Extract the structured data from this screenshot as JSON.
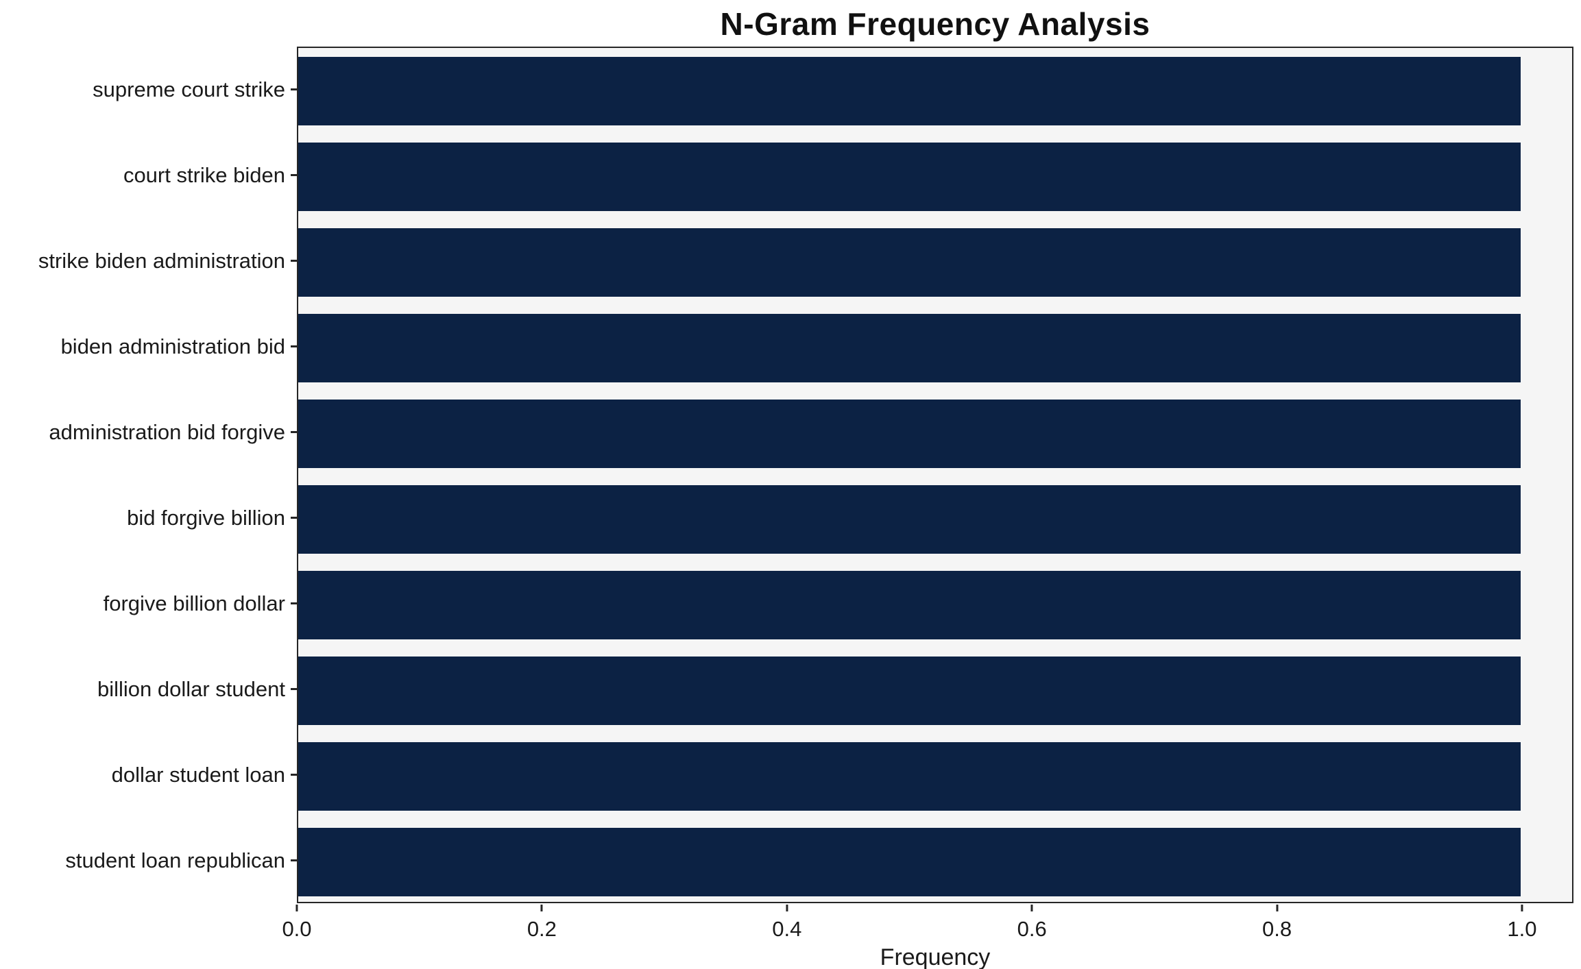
{
  "chart_data": {
    "type": "bar",
    "orientation": "horizontal",
    "title": "N-Gram Frequency Analysis",
    "xlabel": "Frequency",
    "ylabel": "",
    "categories": [
      "supreme court strike",
      "court strike biden",
      "strike biden administration",
      "biden administration bid",
      "administration bid forgive",
      "bid forgive billion",
      "forgive billion dollar",
      "billion dollar student",
      "dollar student loan",
      "student loan republican"
    ],
    "values": [
      1.0,
      1.0,
      1.0,
      1.0,
      1.0,
      1.0,
      1.0,
      1.0,
      1.0,
      1.0
    ],
    "xlim": [
      0.0,
      1.042
    ],
    "xticks": [
      0.0,
      0.2,
      0.4,
      0.6,
      0.8,
      1.0
    ],
    "xtick_labels": [
      "0.0",
      "0.2",
      "0.4",
      "0.6",
      "0.8",
      "1.0"
    ],
    "bar_height_fraction": 0.8,
    "colors": {
      "bar": "#0c2244",
      "plot_background": "#f5f5f5",
      "figure_background": "#ffffff",
      "spine": "#262626",
      "text": "#1a1a1a"
    },
    "grid": false,
    "legend": null
  }
}
